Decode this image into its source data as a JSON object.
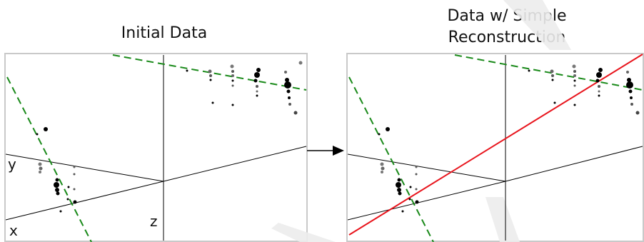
{
  "left_panel": {
    "title": "Initial Data",
    "axis_labels": {
      "y": "y",
      "x": "x",
      "z": "z"
    }
  },
  "right_panel": {
    "title_line1": "Data w/ Simple",
    "title_line2": "Reconstruction"
  },
  "colors": {
    "frame": "#c9c9c9",
    "axes": "#000000",
    "track_dashed": "#1a8a1a",
    "reconstruction": "#e8141c",
    "watermark": "#e6e6e6"
  }
}
